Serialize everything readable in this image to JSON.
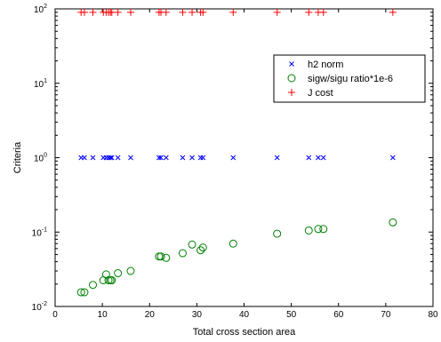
{
  "chart_data": {
    "type": "scatter",
    "xlabel": "Total cross section area",
    "ylabel": "Criteria",
    "xlim": [
      0,
      80
    ],
    "ylim": [
      0.01,
      100
    ],
    "yscale": "log",
    "grid": false,
    "legend_position": "top-right",
    "x_ticks": [
      "0",
      "10",
      "20",
      "30",
      "40",
      "50",
      "60",
      "70",
      "80"
    ],
    "y_ticks": [
      {
        "base": "10",
        "exp": "-2"
      },
      {
        "base": "10",
        "exp": "-1"
      },
      {
        "base": "10",
        "exp": "0"
      },
      {
        "base": "10",
        "exp": "1"
      },
      {
        "base": "10",
        "exp": "2"
      }
    ],
    "series": [
      {
        "name": "h2 norm",
        "marker": "x",
        "color": "#0000ff",
        "x": [
          5.5,
          6.2,
          8.0,
          10.2,
          10.8,
          11.3,
          11.7,
          12.0,
          13.3,
          16.0,
          22.0,
          22.4,
          23.5,
          27.0,
          29.0,
          30.8,
          31.3,
          37.7,
          47.0,
          53.7,
          55.7,
          56.8,
          71.5
        ],
        "y": [
          1,
          1,
          1,
          1,
          1,
          1,
          1,
          1,
          1,
          1,
          1,
          1,
          1,
          1,
          1,
          1,
          1,
          1,
          1,
          1,
          1,
          1,
          1
        ]
      },
      {
        "name": "sigw/sigu ratio*1e-6",
        "marker": "o",
        "color": "#008000",
        "x": [
          5.5,
          6.2,
          8.0,
          10.2,
          10.8,
          11.3,
          11.7,
          12.0,
          13.3,
          16.0,
          22.0,
          22.4,
          23.5,
          27.0,
          29.0,
          30.8,
          31.3,
          37.7,
          47.0,
          53.7,
          55.7,
          56.8,
          71.5
        ],
        "y": [
          0.0155,
          0.0155,
          0.0195,
          0.0225,
          0.027,
          0.0225,
          0.0225,
          0.0225,
          0.028,
          0.03,
          0.047,
          0.047,
          0.045,
          0.052,
          0.068,
          0.057,
          0.062,
          0.07,
          0.095,
          0.105,
          0.11,
          0.11,
          0.135
        ]
      },
      {
        "name": "J cost",
        "marker": "+",
        "color": "#ff0000",
        "x": [
          5.5,
          6.2,
          8.0,
          10.2,
          10.8,
          11.3,
          11.7,
          12.0,
          13.3,
          16.0,
          22.0,
          22.4,
          23.5,
          27.0,
          29.0,
          30.8,
          31.3,
          37.7,
          47.0,
          53.7,
          55.7,
          56.8,
          71.5
        ],
        "y": [
          90,
          90,
          90,
          90,
          90,
          90,
          90,
          90,
          90,
          90,
          90,
          90,
          90,
          90,
          90,
          90,
          90,
          90,
          90,
          90,
          90,
          90,
          90
        ]
      }
    ]
  }
}
